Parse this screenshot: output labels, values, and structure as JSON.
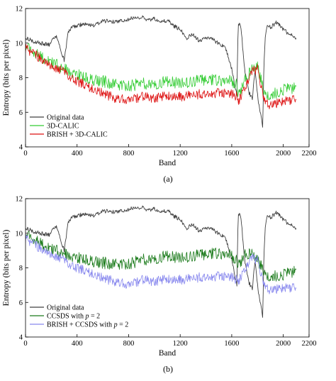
{
  "chart_data": [
    {
      "type": "line",
      "xlabel": "Band",
      "ylabel": "Entropy (bits per pixel)",
      "xlim": [
        0,
        2200
      ],
      "ylim": [
        4,
        12
      ],
      "xticks": [
        0,
        400,
        800,
        1200,
        1600,
        2000,
        2200
      ],
      "yticks": [
        4,
        6,
        8,
        10,
        12
      ],
      "grid": false,
      "legend_position": "bottom-left",
      "caption": "(a)",
      "series": [
        {
          "name": "Original data",
          "color": "#404040",
          "x": [
            0,
            60,
            120,
            180,
            240,
            280,
            300,
            330,
            360,
            400,
            450,
            500,
            560,
            600,
            700,
            800,
            900,
            950,
            1000,
            1050,
            1100,
            1150,
            1200,
            1250,
            1300,
            1350,
            1400,
            1450,
            1500,
            1550,
            1600,
            1640,
            1650,
            1670,
            1700,
            1730,
            1760,
            1780,
            1800,
            1820,
            1840,
            1850,
            1860,
            1880,
            1900,
            1950,
            2000,
            2050,
            2100
          ],
          "y": [
            10.3,
            10.1,
            10.0,
            9.9,
            10.4,
            9.4,
            9.0,
            10.6,
            10.9,
            11.0,
            11.1,
            11.0,
            11.1,
            11.3,
            11.2,
            11.4,
            11.5,
            11.3,
            11.4,
            11.2,
            11.3,
            11.0,
            10.8,
            10.3,
            10.5,
            10.1,
            10.3,
            10.2,
            10.0,
            9.8,
            8.5,
            7.0,
            11.2,
            11.0,
            8.5,
            7.2,
            6.8,
            8.4,
            7.0,
            6.0,
            5.2,
            8.8,
            10.4,
            11.1,
            10.9,
            11.2,
            10.8,
            10.5,
            10.3
          ]
        },
        {
          "name": "3D-CALIC",
          "color": "#33cc33",
          "x": [
            0,
            100,
            200,
            300,
            400,
            500,
            600,
            700,
            800,
            900,
            1000,
            1100,
            1200,
            1300,
            1400,
            1500,
            1600,
            1640,
            1650,
            1700,
            1750,
            1800,
            1850,
            1900,
            2000,
            2100
          ],
          "y": [
            9.8,
            9.3,
            8.9,
            8.5,
            8.2,
            7.9,
            7.8,
            7.6,
            7.5,
            7.7,
            7.6,
            7.8,
            7.7,
            7.8,
            7.9,
            7.8,
            7.8,
            7.6,
            7.0,
            7.8,
            8.5,
            8.6,
            7.2,
            7.0,
            7.3,
            7.4
          ]
        },
        {
          "name": "BRISH + 3D-CALIC",
          "color": "#dd1111",
          "x": [
            0,
            100,
            200,
            300,
            400,
            500,
            600,
            700,
            800,
            900,
            1000,
            1100,
            1200,
            1300,
            1400,
            1500,
            1600,
            1640,
            1650,
            1700,
            1750,
            1800,
            1850,
            1900,
            2000,
            2100
          ],
          "y": [
            9.7,
            9.2,
            8.7,
            8.3,
            7.8,
            7.4,
            7.1,
            6.8,
            6.7,
            6.9,
            6.8,
            7.0,
            6.9,
            7.0,
            7.1,
            7.1,
            7.1,
            6.9,
            6.6,
            7.4,
            8.3,
            8.5,
            6.7,
            6.4,
            6.6,
            6.8
          ]
        }
      ]
    },
    {
      "type": "line",
      "xlabel": "Band",
      "ylabel": "Entropy (bits per pixel)",
      "xlim": [
        0,
        2200
      ],
      "ylim": [
        4,
        12
      ],
      "xticks": [
        0,
        400,
        800,
        1200,
        1600,
        2000,
        2200
      ],
      "yticks": [
        4,
        6,
        8,
        10,
        12
      ],
      "grid": false,
      "legend_position": "bottom-left",
      "caption": "(b)",
      "series": [
        {
          "name": "Original data",
          "color": "#404040",
          "x": [
            0,
            60,
            120,
            180,
            240,
            280,
            300,
            330,
            360,
            400,
            450,
            500,
            560,
            600,
            700,
            800,
            900,
            950,
            1000,
            1050,
            1100,
            1150,
            1200,
            1250,
            1300,
            1350,
            1400,
            1450,
            1500,
            1550,
            1600,
            1640,
            1650,
            1670,
            1700,
            1730,
            1760,
            1780,
            1800,
            1820,
            1840,
            1850,
            1860,
            1880,
            1900,
            1950,
            2000,
            2050,
            2100
          ],
          "y": [
            10.3,
            10.1,
            10.0,
            9.9,
            10.4,
            9.4,
            9.0,
            10.6,
            10.9,
            11.0,
            11.1,
            11.0,
            11.1,
            11.3,
            11.2,
            11.4,
            11.5,
            11.3,
            11.4,
            11.2,
            11.3,
            11.0,
            10.8,
            10.3,
            10.5,
            10.1,
            10.3,
            10.2,
            10.0,
            9.8,
            8.5,
            7.0,
            11.2,
            11.0,
            8.5,
            7.2,
            6.8,
            8.4,
            7.0,
            6.0,
            5.2,
            8.8,
            10.4,
            11.1,
            10.9,
            11.2,
            10.8,
            10.5,
            10.3
          ]
        },
        {
          "name": "CCSDS with p = 2",
          "color": "#1a7a1a",
          "x": [
            0,
            100,
            200,
            300,
            400,
            500,
            600,
            700,
            800,
            900,
            1000,
            1100,
            1200,
            1300,
            1400,
            1500,
            1600,
            1640,
            1650,
            1700,
            1750,
            1800,
            1850,
            1900,
            2000,
            2100
          ],
          "y": [
            9.9,
            9.5,
            9.1,
            8.8,
            8.6,
            8.4,
            8.3,
            8.2,
            8.2,
            8.5,
            8.5,
            8.7,
            8.6,
            8.7,
            8.8,
            8.8,
            8.7,
            8.4,
            8.2,
            8.7,
            8.9,
            8.4,
            7.8,
            7.5,
            7.6,
            7.8
          ]
        },
        {
          "name": "BRISH + CCSDS with p = 2",
          "color": "#8888ee",
          "x": [
            0,
            100,
            200,
            300,
            400,
            500,
            600,
            700,
            800,
            900,
            1000,
            1100,
            1200,
            1300,
            1400,
            1500,
            1600,
            1640,
            1650,
            1700,
            1750,
            1800,
            1850,
            1900,
            2000,
            2100
          ],
          "y": [
            9.7,
            9.2,
            8.8,
            8.4,
            8.0,
            7.7,
            7.4,
            7.2,
            7.0,
            7.3,
            7.2,
            7.4,
            7.3,
            7.4,
            7.5,
            7.5,
            7.5,
            7.3,
            7.2,
            7.9,
            8.6,
            8.4,
            7.0,
            6.7,
            6.8,
            6.9
          ]
        }
      ]
    }
  ]
}
